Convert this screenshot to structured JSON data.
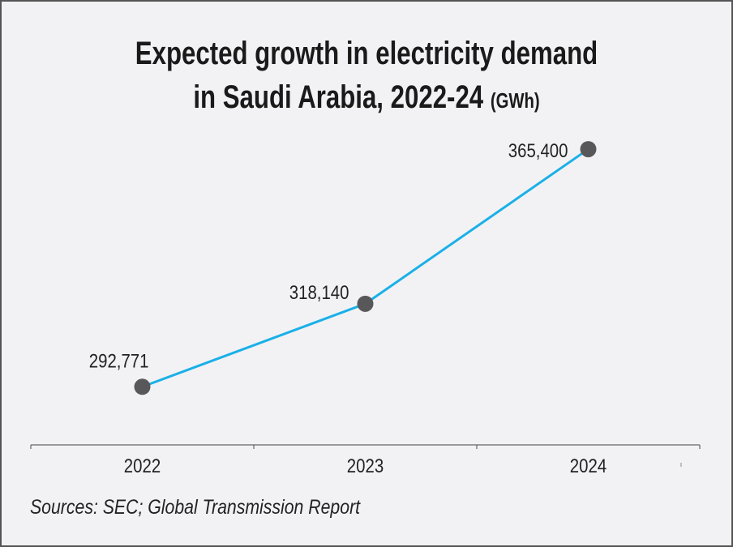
{
  "chart_data": {
    "type": "line",
    "title_line1": "Expected growth in electricity demand",
    "title_line2": "in Saudi Arabia, 2022-24",
    "unit": "(GWh)",
    "categories": [
      "2022",
      "2023",
      "2024"
    ],
    "values": [
      292771,
      318140,
      365400
    ],
    "data_labels": [
      "292,771",
      "318,140",
      "365,400"
    ],
    "line_color": "#1ab0e8",
    "marker_color": "#58585a",
    "grid": false,
    "legend": "none"
  },
  "source": "Sources: SEC; Global Transmission Report"
}
